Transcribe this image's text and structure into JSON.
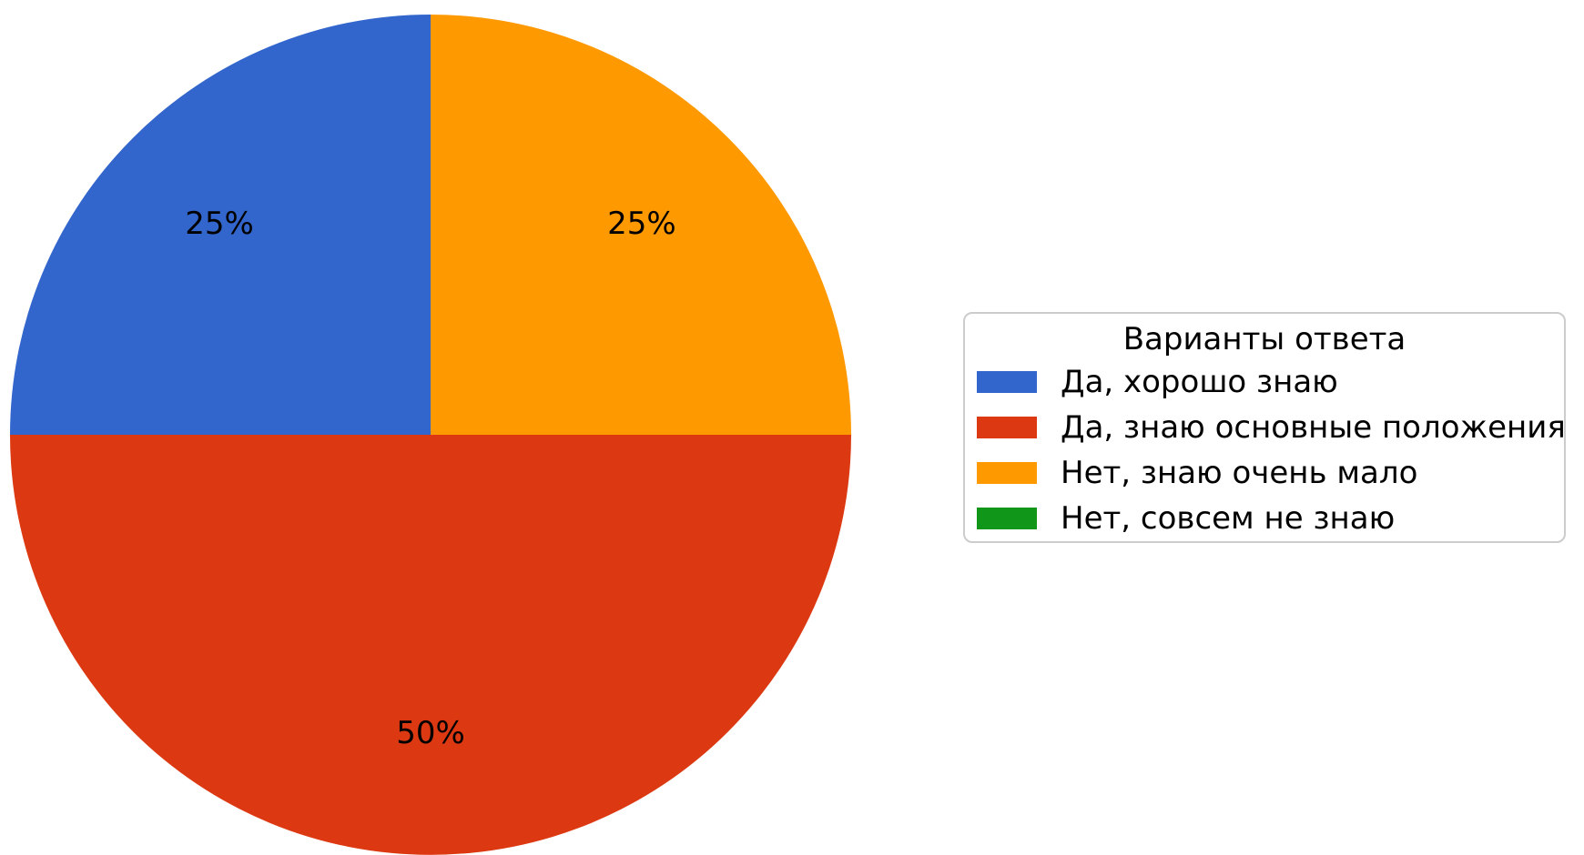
{
  "chart_data": {
    "type": "pie",
    "title": "",
    "legend_title": "Варианты ответа",
    "legend_position": "right",
    "start_angle_deg": 90,
    "direction": "counterclockwise",
    "unit": "%",
    "slices": [
      {
        "label": "Да, хорошо знаю",
        "value": 25,
        "pct_label": "25%",
        "color": "#3366CC"
      },
      {
        "label": "Да, знаю основные положения",
        "value": 50,
        "pct_label": "50%",
        "color": "#DC3912"
      },
      {
        "label": "Нет, знаю очень мало",
        "value": 25,
        "pct_label": "25%",
        "color": "#FF9900"
      },
      {
        "label": "Нет, совсем не знаю",
        "value": 0,
        "pct_label": null,
        "color": "#109618"
      }
    ]
  },
  "legend": {
    "title": "Варианты ответа",
    "items": [
      {
        "label": "Да, хорошо знаю",
        "color": "#3366CC"
      },
      {
        "label": "Да, знаю основные положения",
        "color": "#DC3912"
      },
      {
        "label": "Нет, знаю очень мало",
        "color": "#FF9900"
      },
      {
        "label": "Нет, совсем не знаю",
        "color": "#109618"
      }
    ]
  },
  "colors": {
    "background": "#ffffff",
    "pct_label_text": "#000000",
    "legend_text": "#000000",
    "legend_border": "#cccccc"
  }
}
